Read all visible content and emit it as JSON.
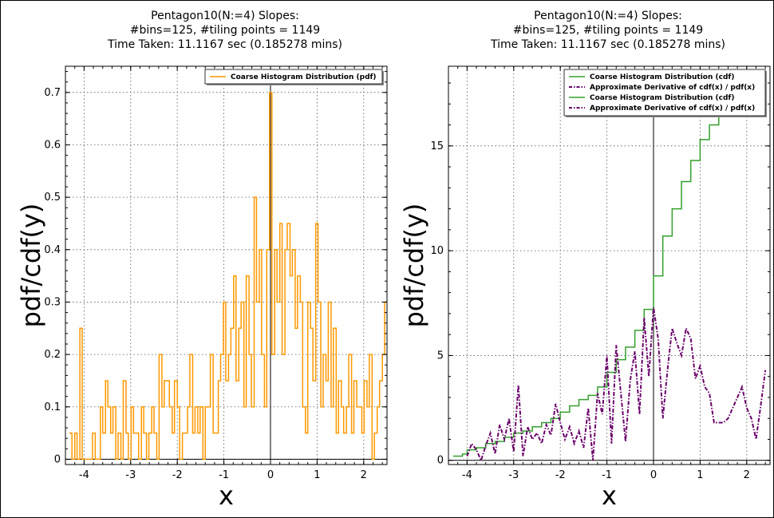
{
  "figure": {
    "title_lines": [
      "Pentagon10(N:=4) Slopes:",
      "#bins=125, #tiling points = 1149",
      "Time Taken: 11.1167 sec (0.185278 mins)"
    ]
  },
  "colors": {
    "pdf_line": "#ff9900",
    "cdf_line": "#33a02c",
    "derivative_line": "#6a006a",
    "axis_zero": "#000000"
  },
  "chart_data": [
    {
      "type": "line",
      "subtype": "step",
      "title": "Pentagon10(N:=4) Slopes:\n#bins=125, #tiling points = 1149\nTime Taken: 11.1167 sec (0.185278 mins)",
      "xlabel": "x",
      "ylabel": "pdf/cdf(y)",
      "xlim": [
        -4.4,
        2.5
      ],
      "ylim": [
        -0.01,
        0.75
      ],
      "xticks": [
        -4,
        -3,
        -2,
        -1,
        0,
        1,
        2
      ],
      "yticks": [
        0,
        0.1,
        0.2,
        0.3,
        0.4,
        0.5,
        0.6,
        0.7
      ],
      "grid": true,
      "legend_position": "top-right",
      "legend": [
        "Coarse Histogram Distribution (pdf)"
      ],
      "series": [
        {
          "name": "Coarse Histogram Distribution (pdf)",
          "color": "#ff9900",
          "x": [
            -4.32,
            -4.26,
            -4.2,
            -4.15,
            -4.09,
            -4.04,
            -3.98,
            -3.93,
            -3.87,
            -3.82,
            -3.76,
            -3.71,
            -3.65,
            -3.6,
            -3.54,
            -3.49,
            -3.43,
            -3.38,
            -3.32,
            -3.27,
            -3.21,
            -3.16,
            -3.1,
            -3.05,
            -2.99,
            -2.94,
            -2.88,
            -2.83,
            -2.77,
            -2.72,
            -2.66,
            -2.61,
            -2.55,
            -2.5,
            -2.44,
            -2.39,
            -2.33,
            -2.28,
            -2.22,
            -2.17,
            -2.11,
            -2.06,
            -2.0,
            -1.95,
            -1.89,
            -1.84,
            -1.78,
            -1.73,
            -1.67,
            -1.62,
            -1.56,
            -1.51,
            -1.45,
            -1.4,
            -1.34,
            -1.29,
            -1.23,
            -1.18,
            -1.12,
            -1.07,
            -1.01,
            -0.96,
            -0.9,
            -0.85,
            -0.79,
            -0.74,
            -0.68,
            -0.63,
            -0.57,
            -0.52,
            -0.46,
            -0.41,
            -0.35,
            -0.3,
            -0.24,
            -0.19,
            -0.13,
            -0.08,
            -0.02,
            0.03,
            0.09,
            0.14,
            0.2,
            0.25,
            0.31,
            0.36,
            0.42,
            0.47,
            0.53,
            0.58,
            0.64,
            0.69,
            0.75,
            0.8,
            0.86,
            0.91,
            0.97,
            1.02,
            1.08,
            1.13,
            1.19,
            1.24,
            1.3,
            1.35,
            1.41,
            1.46,
            1.52,
            1.57,
            1.63,
            1.68,
            1.74,
            1.79,
            1.85,
            1.9,
            1.96,
            2.01,
            2.07,
            2.12,
            2.18,
            2.23,
            2.29,
            2.34,
            2.4,
            2.45
          ],
          "y": [
            0.05,
            0.0,
            0.05,
            0.0,
            0.25,
            0.0,
            0.0,
            0.0,
            0.0,
            0.05,
            0.0,
            0.0,
            0.1,
            0.05,
            0.15,
            0.1,
            0.05,
            0.1,
            0.0,
            0.05,
            0.0,
            0.15,
            0.05,
            0.0,
            0.1,
            0.05,
            0.05,
            0.0,
            0.1,
            0.05,
            0.0,
            0.05,
            0.1,
            0.05,
            0.0,
            0.2,
            0.1,
            0.15,
            0.15,
            0.1,
            0.05,
            0.15,
            0.1,
            0.0,
            0.05,
            0.05,
            0.1,
            0.2,
            0.05,
            0.1,
            0.05,
            0.1,
            0.0,
            0.1,
            0.1,
            0.2,
            0.05,
            0.05,
            0.15,
            0.2,
            0.3,
            0.15,
            0.2,
            0.25,
            0.35,
            0.15,
            0.25,
            0.3,
            0.1,
            0.35,
            0.2,
            0.1,
            0.5,
            0.3,
            0.4,
            0.2,
            0.1,
            0.4,
            0.7,
            0.2,
            0.4,
            0.3,
            0.45,
            0.2,
            0.4,
            0.45,
            0.35,
            0.4,
            0.25,
            0.35,
            0.3,
            0.1,
            0.05,
            0.3,
            0.25,
            0.15,
            0.45,
            0.3,
            0.1,
            0.2,
            0.15,
            0.3,
            0.1,
            0.25,
            0.05,
            0.15,
            0.1,
            0.05,
            0.1,
            0.2,
            0.05,
            0.15,
            0.1,
            0.1,
            0.05,
            0.15,
            0.1,
            0.2,
            0.0,
            0.05,
            0.1,
            0.15,
            0.2,
            0.3
          ]
        }
      ]
    },
    {
      "type": "line",
      "subtype": "step",
      "title": "Pentagon10(N:=4) Slopes:\n#bins=125, #tiling points = 1149\nTime Taken: 11.1167 sec (0.185278 mins)",
      "xlabel": "x",
      "ylabel": "pdf/cdf(y)",
      "xlim": [
        -4.4,
        2.5
      ],
      "ylim": [
        -0.2,
        18.8
      ],
      "xticks": [
        -4,
        -3,
        -2,
        -1,
        0,
        1,
        2
      ],
      "yticks": [
        0,
        5,
        10,
        15
      ],
      "grid": true,
      "legend_position": "top-right",
      "legend": [
        "Coarse Histogram Distribution (cdf)",
        "Approximate Derivative of cdf(x) / pdf(x)",
        "Coarse Histogram Distribution (cdf)",
        "Approximate Derivative of cdf(x) / pdf(x)"
      ],
      "series": [
        {
          "name": "Coarse Histogram Distribution (cdf)",
          "color": "#33a02c",
          "style": "solid",
          "x": [
            -4.3,
            -4.1,
            -4.0,
            -3.8,
            -3.6,
            -3.4,
            -3.2,
            -3.0,
            -2.8,
            -2.6,
            -2.4,
            -2.2,
            -2.0,
            -1.8,
            -1.6,
            -1.4,
            -1.2,
            -1.0,
            -0.8,
            -0.6,
            -0.4,
            -0.2,
            0.0,
            0.2,
            0.4,
            0.6,
            0.8,
            1.0,
            1.2,
            1.4,
            1.55
          ],
          "y": [
            0.2,
            0.3,
            0.5,
            0.6,
            0.8,
            0.9,
            1.1,
            1.3,
            1.4,
            1.6,
            1.8,
            2.0,
            2.3,
            2.6,
            2.9,
            3.1,
            3.5,
            4.2,
            4.8,
            5.4,
            6.2,
            7.2,
            8.8,
            10.7,
            12.0,
            13.3,
            14.3,
            15.3,
            16.0,
            16.6,
            17.0
          ]
        },
        {
          "name": "Approximate Derivative of cdf(x) / pdf(x)",
          "color": "#6a006a",
          "style": "dash-dot",
          "x": [
            -4.0,
            -3.9,
            -3.8,
            -3.7,
            -3.6,
            -3.5,
            -3.4,
            -3.3,
            -3.2,
            -3.1,
            -3.0,
            -2.9,
            -2.8,
            -2.7,
            -2.6,
            -2.5,
            -2.4,
            -2.3,
            -2.2,
            -2.1,
            -2.0,
            -1.9,
            -1.8,
            -1.7,
            -1.6,
            -1.5,
            -1.4,
            -1.3,
            -1.2,
            -1.1,
            -1.0,
            -0.9,
            -0.8,
            -0.7,
            -0.6,
            -0.5,
            -0.4,
            -0.3,
            -0.2,
            -0.1,
            0.0,
            0.1,
            0.2,
            0.3,
            0.4,
            0.5,
            0.6,
            0.7,
            0.8,
            0.9,
            1.0,
            1.1,
            1.2,
            1.3,
            1.4,
            1.5,
            1.6,
            1.7,
            1.8,
            1.9,
            2.0,
            2.1,
            2.2,
            2.3,
            2.4
          ],
          "y": [
            0.2,
            0.8,
            0.5,
            0.0,
            0.7,
            1.3,
            0.3,
            1.7,
            1.0,
            2.0,
            0.4,
            3.6,
            0.2,
            1.6,
            1.0,
            1.3,
            0.8,
            1.7,
            1.2,
            2.7,
            1.8,
            1.0,
            1.6,
            0.8,
            1.4,
            0.6,
            2.5,
            0.0,
            3.2,
            2.2,
            5.0,
            0.8,
            5.5,
            3.2,
            0.9,
            3.8,
            5.2,
            2.2,
            6.8,
            4.0,
            7.3,
            5.8,
            2.0,
            4.3,
            6.3,
            5.6,
            5.0,
            6.3,
            5.8,
            3.9,
            4.5,
            3.5,
            3.2,
            1.8,
            1.8,
            1.8,
            2.0,
            2.5,
            3.0,
            3.5,
            2.5,
            2.0,
            1.0,
            2.6,
            4.3
          ]
        }
      ]
    }
  ]
}
